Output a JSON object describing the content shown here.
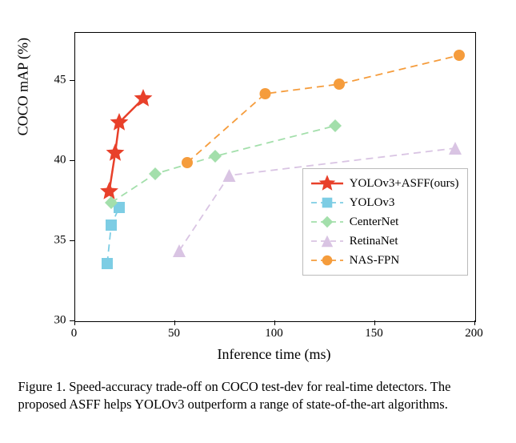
{
  "chart": {
    "type": "line",
    "xlabel": "Inference time (ms)",
    "ylabel": "COCO mAP (%)",
    "label_fontsize": 18,
    "tick_fontsize": 15,
    "xlim": [
      0,
      200
    ],
    "ylim": [
      30,
      48
    ],
    "xtick_step": 50,
    "yticks": [
      30,
      35,
      40,
      45
    ],
    "xticks": [
      0,
      50,
      100,
      150,
      200
    ],
    "background_color": "#ffffff",
    "border_color": "#000000",
    "series": [
      {
        "name": "YOLOv3+ASFF(ours)",
        "color": "#e8402a",
        "marker": "star",
        "marker_size": 12,
        "line_style": "solid",
        "line_width": 2.5,
        "points": [
          [
            17,
            38.1
          ],
          [
            20,
            40.5
          ],
          [
            22,
            42.4
          ],
          [
            34,
            43.9
          ]
        ]
      },
      {
        "name": "YOLOv3",
        "color": "#7dcde4",
        "marker": "square",
        "marker_size": 7,
        "line_style": "dashed",
        "line_width": 1.8,
        "points": [
          [
            16,
            33.6
          ],
          [
            18,
            36.0
          ],
          [
            22,
            37.1
          ]
        ]
      },
      {
        "name": "CenterNet",
        "color": "#a3dfab",
        "marker": "diamond",
        "marker_size": 8,
        "line_style": "dashed",
        "line_width": 1.8,
        "points": [
          [
            18,
            37.4
          ],
          [
            40,
            39.2
          ],
          [
            70,
            40.3
          ],
          [
            130,
            42.2
          ]
        ]
      },
      {
        "name": "RetinaNet",
        "color": "#d9c4e3",
        "marker": "triangle",
        "marker_size": 8,
        "line_style": "dashed",
        "line_width": 1.8,
        "points": [
          [
            52,
            34.4
          ],
          [
            77,
            39.1
          ],
          [
            190,
            40.8
          ]
        ]
      },
      {
        "name": "NAS-FPN",
        "color": "#f59c3c",
        "marker": "circle",
        "marker_size": 7,
        "line_style": "dashed",
        "line_width": 1.8,
        "points": [
          [
            56,
            39.9
          ],
          [
            95,
            44.2
          ],
          [
            132,
            44.8
          ],
          [
            192,
            46.6
          ]
        ]
      }
    ],
    "legend": {
      "position": "lower-right",
      "border_color": "#bbbbbb",
      "fontsize": 15
    }
  },
  "caption": "Figure 1. Speed-accuracy trade-off on COCO test-dev for real-time detectors. The proposed ASFF helps YOLOv3 outperform a range of state-of-the-art algorithms."
}
